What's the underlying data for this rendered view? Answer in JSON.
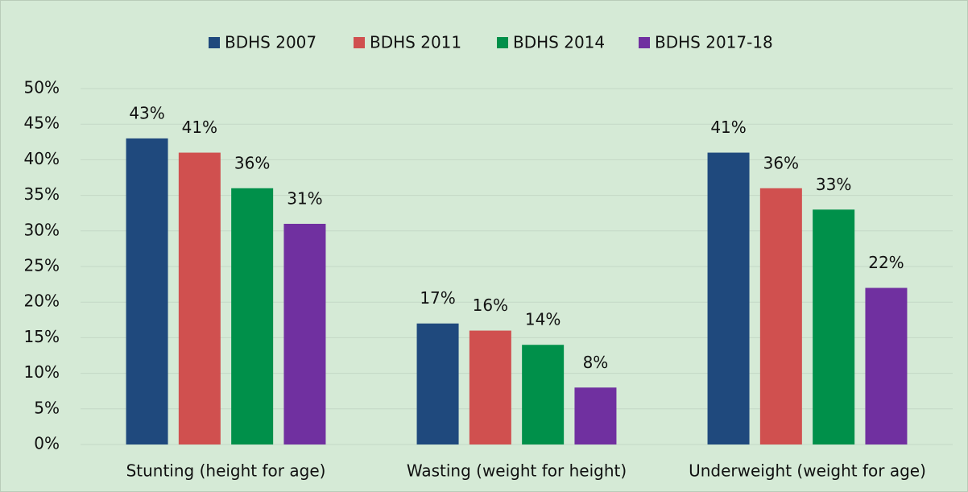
{
  "chart_data": {
    "type": "bar",
    "categories": [
      "Stunting (height for age)",
      "Wasting (weight for height)",
      "Underweight (weight for age)"
    ],
    "series": [
      {
        "name": "BDHS 2007",
        "color": "#1f497d",
        "values": [
          43,
          17,
          41
        ],
        "value_labels": [
          "43%",
          "17%",
          "41%"
        ]
      },
      {
        "name": "BDHS 2011",
        "color": "#d0504f",
        "values": [
          41,
          16,
          36
        ],
        "value_labels": [
          "41%",
          "16%",
          "36%"
        ]
      },
      {
        "name": "BDHS 2014",
        "color": "#00904a",
        "values": [
          36,
          14,
          33
        ],
        "value_labels": [
          "36%",
          "14%",
          "33%"
        ]
      },
      {
        "name": "BDHS 2017-18",
        "color": "#7030a0",
        "values": [
          31,
          8,
          22
        ],
        "value_labels": [
          "31%",
          "8%",
          "22%"
        ]
      }
    ],
    "ylim": [
      0,
      50
    ],
    "yticks": [
      {
        "value": 0,
        "label": "0%"
      },
      {
        "value": 5,
        "label": "5%"
      },
      {
        "value": 10,
        "label": "10%"
      },
      {
        "value": 15,
        "label": "15%"
      },
      {
        "value": 20,
        "label": "20%"
      },
      {
        "value": 25,
        "label": "25%"
      },
      {
        "value": 30,
        "label": "30%"
      },
      {
        "value": 35,
        "label": "35%"
      },
      {
        "value": 40,
        "label": "40%"
      },
      {
        "value": 45,
        "label": "45%"
      },
      {
        "value": 50,
        "label": "50%"
      }
    ],
    "grid": true,
    "legend": "top"
  }
}
